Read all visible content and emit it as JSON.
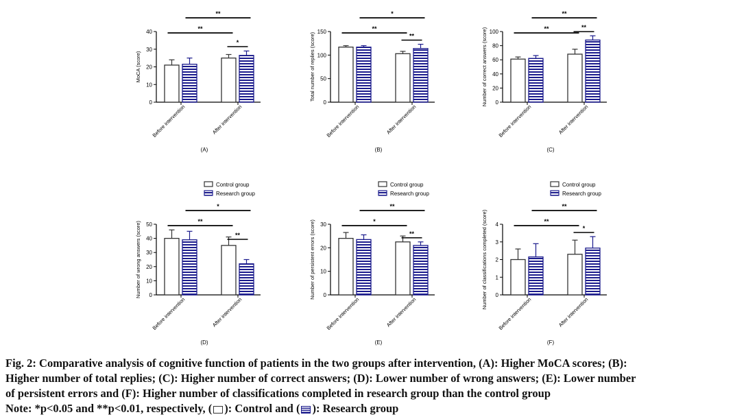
{
  "chart_data": [
    {
      "type": "bar",
      "panel": "(A)",
      "ylabel": "MoCA (score)",
      "ylim": [
        0,
        40
      ],
      "yticks": [
        "0",
        "10",
        "20",
        "30",
        "40"
      ],
      "yticks_val": [
        0,
        10,
        20,
        30,
        40
      ],
      "categories": [
        "Before intervention",
        "After intervention"
      ],
      "series": [
        {
          "name": "Control group",
          "values": [
            21,
            25
          ],
          "errors": [
            3,
            2
          ]
        },
        {
          "name": "Research group",
          "values": [
            21.5,
            26.5
          ],
          "errors": [
            3.5,
            2.5
          ]
        }
      ],
      "significance": [
        {
          "label": "**",
          "from": "after.research",
          "to": "before.research",
          "level": 3
        },
        {
          "label": "**",
          "from": "before.control",
          "to": "after.control",
          "level": 2
        },
        {
          "label": "*",
          "from": "after.control",
          "to": "after.research",
          "level": 1
        }
      ],
      "legend": false
    },
    {
      "type": "bar",
      "panel": "(B)",
      "ylabel": "Total number of replies (score)",
      "ylim": [
        0,
        150
      ],
      "yticks": [
        "0",
        "50",
        "100",
        "150"
      ],
      "yticks_val": [
        0,
        50,
        100,
        150
      ],
      "categories": [
        "Before intervention",
        "After intervention"
      ],
      "series": [
        {
          "name": "Control group",
          "values": [
            117,
            103
          ],
          "errors": [
            3,
            5
          ]
        },
        {
          "name": "Research group",
          "values": [
            117,
            114
          ],
          "errors": [
            3,
            9
          ]
        }
      ],
      "significance": [
        {
          "label": "*",
          "from": "after.research",
          "to": "before.research",
          "level": 3
        },
        {
          "label": "**",
          "from": "before.control",
          "to": "after.control",
          "level": 2
        },
        {
          "label": "**",
          "from": "after.control",
          "to": "after.research",
          "level": 1
        }
      ],
      "legend": false
    },
    {
      "type": "bar",
      "panel": "(C)",
      "ylabel": "Number of correct answers (score)",
      "ylim": [
        0,
        100
      ],
      "yticks": [
        "0",
        "20",
        "40",
        "60",
        "80",
        "100"
      ],
      "yticks_val": [
        0,
        20,
        40,
        60,
        80,
        100
      ],
      "categories": [
        "Before intervention",
        "After intervention"
      ],
      "series": [
        {
          "name": "Control group",
          "values": [
            61,
            68
          ],
          "errors": [
            3,
            7
          ]
        },
        {
          "name": "Research group",
          "values": [
            62,
            88
          ],
          "errors": [
            4,
            6
          ]
        }
      ],
      "significance": [
        {
          "label": "**",
          "from": "after.research",
          "to": "before.research",
          "level": 3
        },
        {
          "label": "**",
          "from": "before.control",
          "to": "after.control",
          "level": 2
        },
        {
          "label": "**",
          "from": "after.control",
          "to": "after.research",
          "level": 1
        }
      ],
      "legend": false
    },
    {
      "type": "bar",
      "panel": "(D)",
      "ylabel": "Number of wrong answers (score)",
      "ylim": [
        0,
        50
      ],
      "yticks": [
        "0",
        "10",
        "20",
        "30",
        "40",
        "50"
      ],
      "yticks_val": [
        0,
        10,
        20,
        30,
        40,
        50
      ],
      "categories": [
        "Before intervention",
        "After intervention"
      ],
      "series": [
        {
          "name": "Control group",
          "values": [
            40,
            35
          ],
          "errors": [
            6,
            6
          ]
        },
        {
          "name": "Research group",
          "values": [
            39,
            22
          ],
          "errors": [
            6,
            3
          ]
        }
      ],
      "significance": [
        {
          "label": "*",
          "from": "after.research",
          "to": "before.research",
          "level": 3
        },
        {
          "label": "**",
          "from": "before.control",
          "to": "after.control",
          "level": 2
        },
        {
          "label": "**",
          "from": "after.control",
          "to": "after.research",
          "level": 1
        }
      ],
      "legend": true
    },
    {
      "type": "bar",
      "panel": "(E)",
      "ylabel": "Number of persistent errors (score)",
      "ylim": [
        0,
        30
      ],
      "yticks": [
        "0",
        "10",
        "20",
        "30"
      ],
      "yticks_val": [
        0,
        10,
        20,
        30
      ],
      "categories": [
        "Before intervention",
        "After intervention"
      ],
      "series": [
        {
          "name": "Control group",
          "values": [
            24,
            22.5
          ],
          "errors": [
            2.5,
            2.5
          ]
        },
        {
          "name": "Research group",
          "values": [
            23.5,
            21
          ],
          "errors": [
            2,
            1.5
          ]
        }
      ],
      "significance": [
        {
          "label": "**",
          "from": "after.research",
          "to": "before.research",
          "level": 3
        },
        {
          "label": "*",
          "from": "before.control",
          "to": "after.control",
          "level": 2
        },
        {
          "label": "**",
          "from": "after.control",
          "to": "after.research",
          "level": 1
        }
      ],
      "legend": true
    },
    {
      "type": "bar",
      "panel": "(F)",
      "ylabel": "Number of classifications completed (score)",
      "ylim": [
        0,
        4
      ],
      "yticks": [
        "0",
        "1",
        "2",
        "3",
        "4"
      ],
      "yticks_val": [
        0,
        1,
        2,
        3,
        4
      ],
      "categories": [
        "Before intervention",
        "After intervention"
      ],
      "series": [
        {
          "name": "Control group",
          "values": [
            2.0,
            2.3
          ],
          "errors": [
            0.6,
            0.8
          ]
        },
        {
          "name": "Research group",
          "values": [
            2.15,
            2.65
          ],
          "errors": [
            0.75,
            0.65
          ]
        }
      ],
      "significance": [
        {
          "label": "**",
          "from": "after.research",
          "to": "before.research",
          "level": 3
        },
        {
          "label": "**",
          "from": "before.control",
          "to": "after.control",
          "level": 2
        },
        {
          "label": "*",
          "from": "after.control",
          "to": "after.research",
          "level": 1
        }
      ],
      "legend": true
    }
  ],
  "legend_labels": {
    "control": "Control group",
    "research": "Research group"
  },
  "colors": {
    "control": "#333333",
    "research": "#1a1a8c",
    "axis": "#000000"
  },
  "caption": {
    "line1": "Fig. 2: Comparative analysis of cognitive function of patients in the two groups after intervention, (A): Higher MoCA scores; (B):",
    "line2": "Higher number of total replies; (C): Higher number of correct answers; (D): Lower number of wrong answers; (E): Lower number",
    "line3": "of persistent errors and (F): Higher number of classifications completed in research group than the control group",
    "note_prefix": "Note: *p<0.05 and **p<0.01, respectively, (",
    "note_control": "): Control and (",
    "note_research": "): Research group"
  }
}
